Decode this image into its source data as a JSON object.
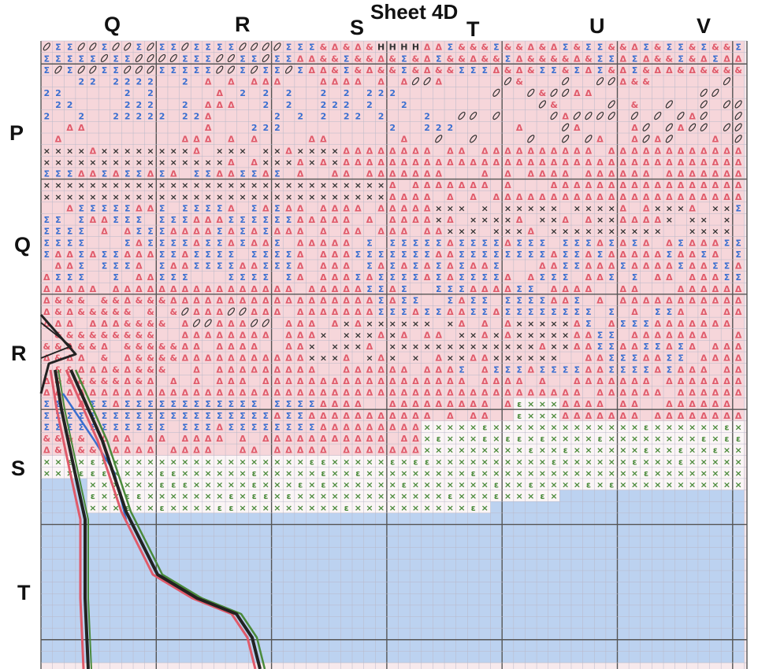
{
  "sheet": {
    "title": "Sheet  4D"
  },
  "column_labels": [
    "Q",
    "R",
    "S",
    "T",
    "U",
    "V"
  ],
  "row_labels": [
    "P",
    "Q",
    "R",
    "S",
    "T"
  ],
  "symbols": {
    "sigma": "Σ",
    "ampersand": "&",
    "delta": "Δ",
    "cross": "×",
    "two": "2",
    "h": "H",
    "three": "ε"
  },
  "colors": {
    "pink": "#e05a6a",
    "pink_fill": "#f6c7cc",
    "blue": "#3a6fd0",
    "blue_fill": "#bcd2f0",
    "dark": "#333333",
    "green": "#4a8a3a",
    "grid": "#8a8a8a",
    "outline_black": "#222222",
    "outline_red": "#e05a6a",
    "outline_green": "#4a8a3a",
    "outline_blue": "#3a6fd0"
  }
}
